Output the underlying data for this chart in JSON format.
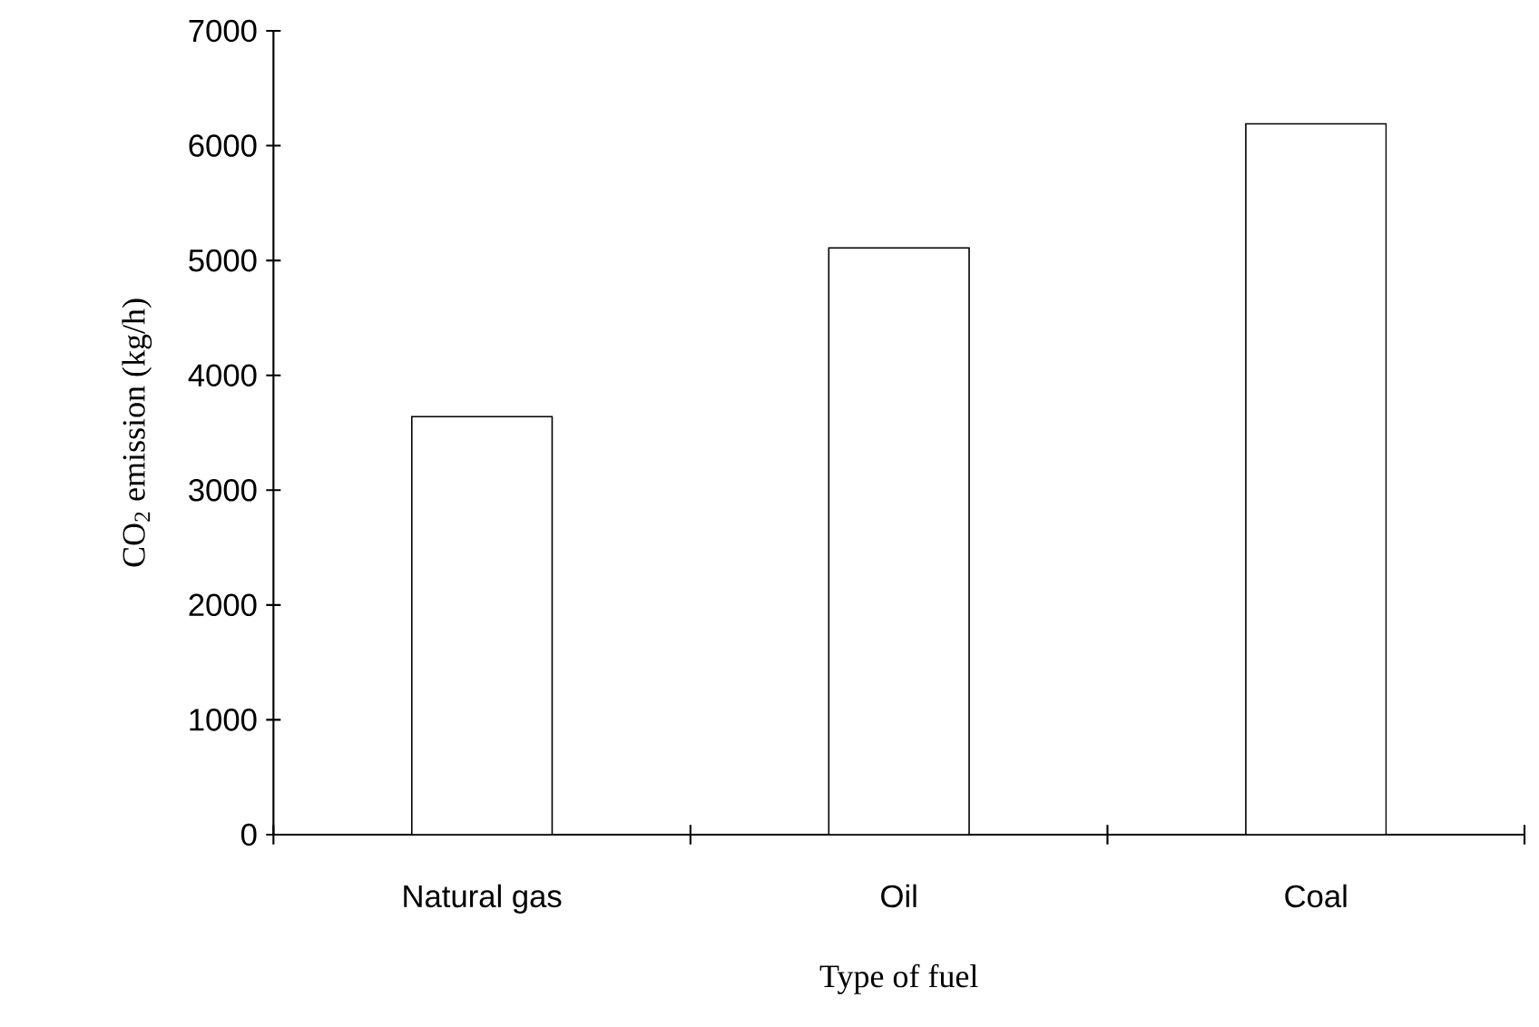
{
  "chart_data": {
    "type": "bar",
    "xlabel": "Type of fuel",
    "ylabel": "CO$_{2}$ emission (kg/h)",
    "categories": [
      "Natural gas",
      "Oil",
      "Coal"
    ],
    "values": [
      3640,
      5110,
      6190
    ],
    "color": "#ffffff",
    "ylim": [
      0,
      7000
    ],
    "yticks": [
      0,
      1000,
      2000,
      3000,
      4000,
      5000,
      6000,
      7000
    ],
    "grid": false
  }
}
